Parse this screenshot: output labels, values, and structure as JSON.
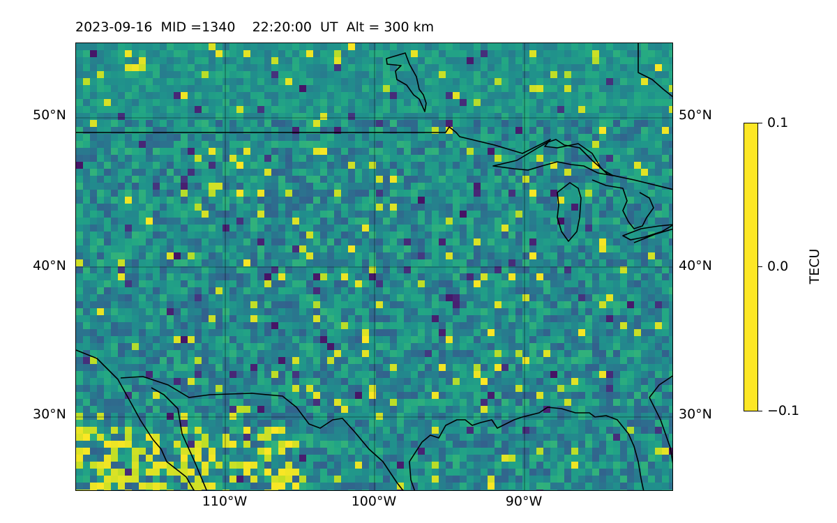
{
  "title": "2023-09-16  MID =1340    22:20:00  UT  Alt = 300 km",
  "map": {
    "projection": "plate carree",
    "lon_range": [
      -120,
      -80
    ],
    "lat_range": [
      25,
      55
    ],
    "gridlines": true,
    "lat_labels": [
      "30°N",
      "40°N",
      "50°N"
    ],
    "lon_labels": [
      "110°W",
      "100°W",
      "90°W"
    ],
    "coastline_color": "#000000",
    "field_quantity": "TEC perturbation"
  },
  "colorbar": {
    "label": "TECU",
    "colormap": "viridis",
    "min": -0.1,
    "max": 0.1,
    "ticks": [
      "0.1",
      "0.0",
      "−0.1"
    ]
  }
}
